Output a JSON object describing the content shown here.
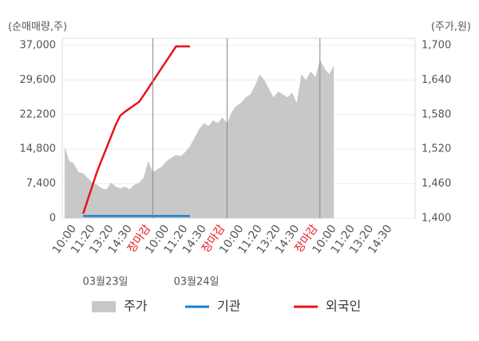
{
  "chart_data": {
    "type": "line",
    "left_axis_title": "(순매매량,주)",
    "right_axis_title": "(주가,원)",
    "categories": [
      null,
      null,
      "10:00",
      null,
      null,
      null,
      "11:20",
      null,
      null,
      null,
      "13:20",
      null,
      null,
      null,
      "14:30",
      null,
      null,
      null,
      "장마감",
      null,
      null,
      null,
      "10:00",
      null,
      null,
      null,
      "11:20",
      null,
      null,
      null,
      "14:30",
      null,
      null,
      null,
      "장마감",
      null,
      null,
      null,
      "10:00",
      null,
      null,
      null,
      "11:20",
      null,
      null,
      null,
      "13:20",
      null,
      null,
      null,
      "14:30",
      null,
      null,
      null,
      "장마감",
      null,
      null,
      null,
      "10:00",
      null,
      null,
      null,
      "11:20",
      null,
      null,
      null,
      "13:20",
      null,
      null,
      null,
      "14:30",
      null,
      null,
      null,
      null,
      null
    ],
    "x_label_color": "#555555",
    "x_label_highlight": {
      "text": "장마감",
      "color": "#e8141b"
    },
    "date_labels": [
      "03월23일",
      "03월24일"
    ],
    "ylim": [
      0,
      37000
    ],
    "yticks": [
      0,
      {
        "value": 7400,
        "label": "7,400"
      },
      {
        "value": 14800,
        "label": "14,800"
      },
      {
        "value": 22200,
        "label": "22,200"
      },
      {
        "value": 29600,
        "label": "29,600"
      },
      {
        "value": 37000,
        "label": "37,000"
      }
    ],
    "y2lim": [
      1400,
      1700
    ],
    "y2ticks": [
      {
        "value": 1400,
        "label": "1,400"
      },
      {
        "value": 1460,
        "label": "1,460"
      },
      {
        "value": 1520,
        "label": "1,520"
      },
      {
        "value": 1580,
        "label": "1,580"
      },
      {
        "value": 1640,
        "label": "1,640"
      },
      {
        "value": 1700,
        "label": "1,700"
      }
    ],
    "series": [
      {
        "name": "주가",
        "color": "#c8c8c8",
        "axis": "y2",
        "style": "area",
        "values": [
          1525,
          1500,
          1495,
          1480,
          1478,
          1470,
          1462,
          1458,
          1452,
          1450,
          1462,
          1455,
          1452,
          1455,
          1450,
          1458,
          1462,
          1470,
          1500,
          1480,
          1485,
          1490,
          1500,
          1505,
          1510,
          1508,
          1515,
          1525,
          1540,
          1555,
          1565,
          1560,
          1570,
          1565,
          1575,
          1565,
          1585,
          1595,
          1600,
          1610,
          1615,
          1630,
          1650,
          1640,
          1625,
          1610,
          1620,
          1615,
          1610,
          1618,
          1600,
          1650,
          1640,
          1655,
          1645,
          1675,
          1660,
          1650,
          1665,
          null,
          null,
          null,
          null,
          null,
          null,
          null,
          null,
          null,
          null,
          null,
          null,
          null,
          null,
          null,
          null,
          null
        ]
      },
      {
        "name": "기관",
        "color": "#1a7fd0",
        "style": "line",
        "values": [
          null,
          null,
          null,
          null,
          500,
          500,
          500,
          500,
          500,
          500,
          500,
          500,
          500,
          500,
          500,
          500,
          500,
          500,
          500,
          500,
          500,
          500,
          500,
          500,
          500,
          500,
          500,
          500,
          null,
          null,
          null,
          null,
          null,
          null,
          null,
          null,
          null,
          null,
          null,
          null,
          null,
          null,
          null,
          null,
          null,
          null,
          null,
          null,
          null,
          null,
          null,
          null,
          null,
          null,
          null,
          null,
          null,
          null,
          null,
          null,
          null,
          null,
          null,
          null,
          null,
          null,
          null,
          null,
          null,
          null,
          null,
          null,
          null,
          null,
          null,
          null
        ]
      },
      {
        "name": "외국인",
        "color": "#e8141b",
        "style": "line",
        "values": [
          null,
          null,
          null,
          null,
          1000,
          4000,
          7000,
          10000,
          12500,
          15000,
          17500,
          20000,
          22000,
          22800,
          23500,
          24200,
          24900,
          26300,
          27800,
          29300,
          30800,
          32300,
          33800,
          35300,
          36800,
          36800,
          36800,
          36800,
          null,
          null,
          null,
          null,
          null,
          null,
          null,
          null,
          null,
          null,
          null,
          null,
          null,
          null,
          null,
          null,
          null,
          null,
          null,
          null,
          null,
          null,
          null,
          null,
          null,
          null,
          null,
          null,
          null,
          null,
          null,
          null,
          null,
          null,
          null,
          null,
          null,
          null,
          null,
          null,
          null,
          null,
          null,
          null,
          null,
          null,
          null,
          null
        ]
      }
    ]
  }
}
